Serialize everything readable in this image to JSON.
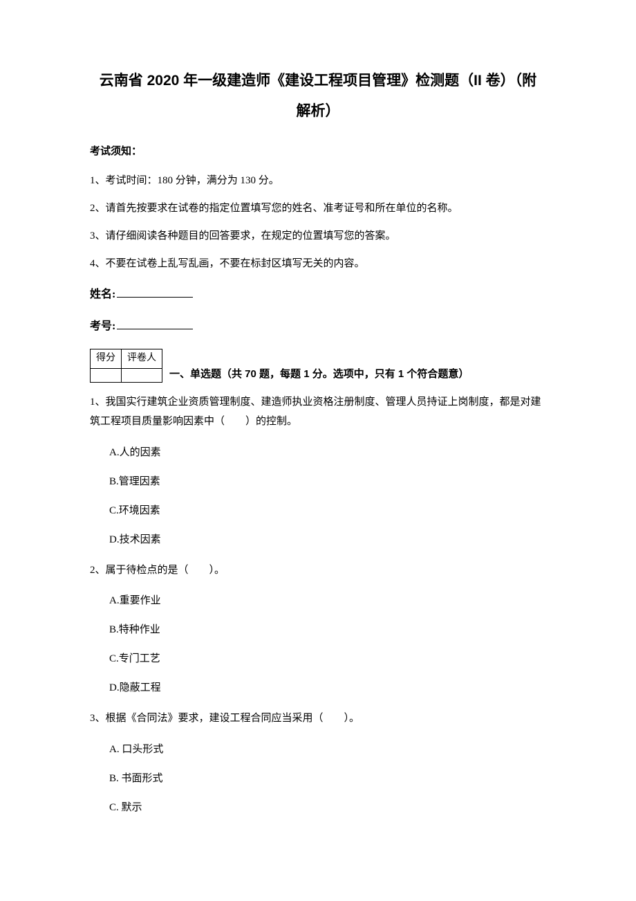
{
  "title": {
    "main": "云南省 2020 年一级建造师《建设工程项目管理》检测题（II 卷）（附",
    "sub": "解析）"
  },
  "notice": {
    "header": "考试须知：",
    "items": [
      "1、考试时间：180 分钟，满分为 130 分。",
      "2、请首先按要求在试卷的指定位置填写您的姓名、准考证号和所在单位的名称。",
      "3、请仔细阅读各种题目的回答要求，在规定的位置填写您的答案。",
      "4、不要在试卷上乱写乱画，不要在标封区填写无关的内容。"
    ]
  },
  "fields": {
    "name_label": "姓名:",
    "id_label": "考号:"
  },
  "score_table": {
    "col1": "得分",
    "col2": "评卷人"
  },
  "section": {
    "title": "一、单选题（共 70 题，每题 1 分。选项中，只有 1 个符合题意）"
  },
  "questions": [
    {
      "text": "1、我国实行建筑企业资质管理制度、建造师执业资格注册制度、管理人员持证上岗制度，都是对建筑工程项目质量影响因素中（　　）的控制。",
      "options": [
        "A.人的因素",
        "B.管理因素",
        "C.环境因素",
        "D.技术因素"
      ]
    },
    {
      "text": "2、属于待检点的是（　　）。",
      "options": [
        "A.重要作业",
        "B.特种作业",
        "C.专门工艺",
        "D.隐蔽工程"
      ]
    },
    {
      "text": "3、根据《合同法》要求，建设工程合同应当采用（　　）。",
      "options": [
        "A. 口头形式",
        "B. 书面形式",
        "C. 默示"
      ]
    }
  ]
}
